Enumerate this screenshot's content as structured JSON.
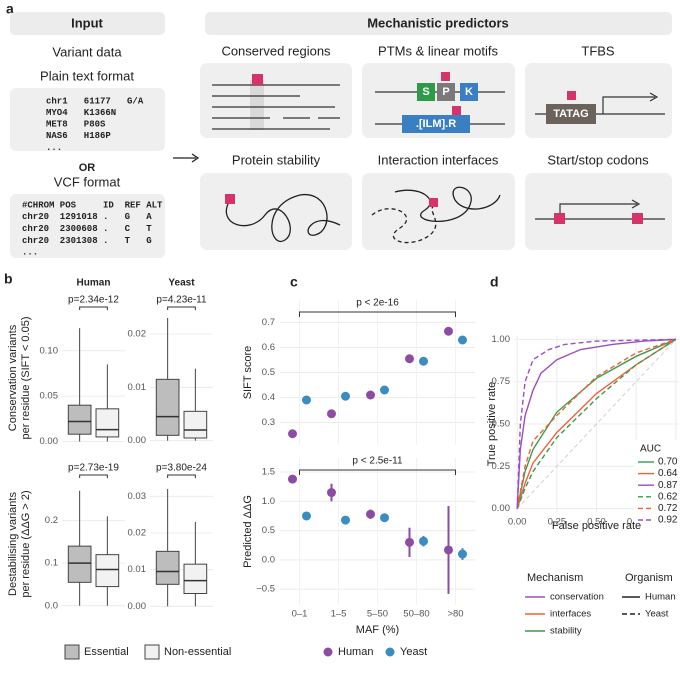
{
  "panel_a": {
    "label": "a",
    "input_header": "Input",
    "predictors_header": "Mechanistic predictors",
    "variant_data": "Variant data",
    "plain_text_title": "Plain text format",
    "plain_text_lines": [
      "chr1   61177   G/A",
      "MYO4   K1366N",
      "MET8   P80S",
      "NAS6   H186P",
      "..."
    ],
    "or": "OR",
    "vcf_title": "VCF format",
    "vcf_lines": [
      "#CHROM POS     ID  REF ALT",
      "chr20  1291018 .   G   A",
      "chr20  2300608 .   C   T",
      "chr20  2301308 .   T   G",
      "..."
    ],
    "predictors": [
      "Conserved regions",
      "PTMs & linear motifs",
      "TFBS",
      "Protein stability",
      "Interaction interfaces",
      "Start/stop codons"
    ],
    "motif_letters": [
      "S",
      "P",
      "K"
    ],
    "motif_pattern": ".[ILM].R",
    "tfbs_sequence": "TATAG"
  },
  "chart_data": [
    {
      "type": "boxplot",
      "label": "b",
      "columns": [
        "Human",
        "Yeast"
      ],
      "groups": [
        {
          "name": "Essential",
          "color": "#bdbdbd"
        },
        {
          "name": "Non-essential",
          "color": "#f2f2f2"
        }
      ],
      "rows": [
        {
          "ylabel": [
            "Conservation variants",
            "per residue (SIFT < 0.05)"
          ],
          "plots": [
            {
              "p_label": "p=2.34e-12",
              "ylim": [
                -0.005,
                0.145
              ],
              "yticks": [
                {
                  "value": 0,
                  "label": "0.00"
                },
                {
                  "value": 0.05,
                  "label": "0.05"
                },
                {
                  "value": 0.1,
                  "label": "0.10"
                }
              ],
              "boxes": [
                {
                  "min": 0,
                  "q1": 0.008,
                  "median": 0.022,
                  "q3": 0.04,
                  "max": 0.125
                },
                {
                  "min": 0,
                  "q1": 0.005,
                  "median": 0.013,
                  "q3": 0.036,
                  "max": 0.085
                }
              ]
            },
            {
              "p_label": "p=4.23e-11",
              "ylim": [
                -0.001,
                0.0245
              ],
              "yticks": [
                {
                  "value": 0,
                  "label": "0.00"
                },
                {
                  "value": 0.01,
                  "label": "0.01"
                },
                {
                  "value": 0.02,
                  "label": "0.02"
                }
              ],
              "boxes": [
                {
                  "min": 0,
                  "q1": 0.001,
                  "median": 0.0045,
                  "q3": 0.0115,
                  "max": 0.023
                },
                {
                  "min": 0,
                  "q1": 0.0005,
                  "median": 0.002,
                  "q3": 0.0055,
                  "max": 0.0135
                }
              ]
            }
          ]
        },
        {
          "ylabel": [
            "Destabilising variants",
            "per residue (ΔΔG > 2)"
          ],
          "plots": [
            {
              "p_label": "p=2.73e-19",
              "ylim": [
                -0.01,
                0.3
              ],
              "yticks": [
                {
                  "value": 0,
                  "label": "0.0"
                },
                {
                  "value": 0.1,
                  "label": "0.1"
                },
                {
                  "value": 0.2,
                  "label": "0.2"
                }
              ],
              "boxes": [
                {
                  "min": 0,
                  "q1": 0.055,
                  "median": 0.1,
                  "q3": 0.14,
                  "max": 0.27
                },
                {
                  "min": 0,
                  "q1": 0.045,
                  "median": 0.085,
                  "q3": 0.12,
                  "max": 0.21
                }
              ]
            },
            {
              "p_label": "p=3.80e-24",
              "ylim": [
                -0.001,
                0.035
              ],
              "yticks": [
                {
                  "value": 0,
                  "label": "0.00"
                },
                {
                  "value": 0.01,
                  "label": "0.01"
                },
                {
                  "value": 0.02,
                  "label": "0.02"
                },
                {
                  "value": 0.03,
                  "label": "0.03"
                }
              ],
              "boxes": [
                {
                  "min": 0,
                  "q1": 0.006,
                  "median": 0.0095,
                  "q3": 0.015,
                  "max": 0.032
                },
                {
                  "min": 0,
                  "q1": 0.0035,
                  "median": 0.007,
                  "q3": 0.0115,
                  "max": 0.023
                }
              ]
            }
          ]
        }
      ]
    },
    {
      "type": "scatter",
      "label": "c",
      "categories": [
        "0–1",
        "1–5",
        "5–50",
        "50–80",
        ">80"
      ],
      "xlabel": "MAF (%)",
      "panels": [
        {
          "ylabel": "SIFT score",
          "annotation": "p < 2e-16",
          "ylim": [
            0.21,
            0.79
          ],
          "yticks": [
            0.3,
            0.4,
            0.5,
            0.6,
            0.7
          ],
          "series": [
            {
              "name": "Human",
              "color": "#8e4ba3",
              "values": [
                0.255,
                0.335,
                0.41,
                0.555,
                0.665
              ]
            },
            {
              "name": "Yeast",
              "color": "#3a8cc1",
              "values": [
                0.39,
                0.405,
                0.43,
                0.545,
                0.63
              ]
            }
          ]
        },
        {
          "ylabel": "Predicted ΔΔG",
          "annotation": "p < 2.5e-11",
          "ylim": [
            -0.77,
            1.74
          ],
          "yticks": [
            {
              "value": -0.5,
              "label": "−0.5"
            },
            {
              "value": 0,
              "label": "0.0"
            },
            {
              "value": 0.5,
              "label": "0.5"
            },
            {
              "value": 1,
              "label": "1.0"
            },
            {
              "value": 1.5,
              "label": "1.5"
            }
          ],
          "series": [
            {
              "name": "Human",
              "color": "#8e4ba3",
              "values": [
                1.38,
                1.15,
                0.78,
                0.3,
                0.17
              ],
              "errors": [
                0.07,
                0.15,
                0.08,
                0.25,
                0.75
              ]
            },
            {
              "name": "Yeast",
              "color": "#3a8cc1",
              "values": [
                0.75,
                0.68,
                0.72,
                0.32,
                0.1
              ],
              "errors": [
                0.04,
                0.04,
                0.07,
                0.09,
                0.1
              ]
            }
          ]
        }
      ]
    },
    {
      "type": "line",
      "label": "d",
      "xlabel": "False positive rate",
      "ylabel": "True positive rate",
      "xlim": [
        -0.02,
        1.02
      ],
      "ylim": [
        -0.02,
        1.02
      ],
      "xticks": [
        {
          "value": 0,
          "label": "0.00"
        },
        {
          "value": 0.25,
          "label": "0.25"
        },
        {
          "value": 0.5,
          "label": "0.50"
        },
        {
          "value": 0.75,
          "label": "0.75"
        },
        {
          "value": 1,
          "label": "1.00"
        }
      ],
      "yticks": [
        {
          "value": 0,
          "label": "0.00"
        },
        {
          "value": 0.25,
          "label": "0.25"
        },
        {
          "value": 0.5,
          "label": "0.50"
        },
        {
          "value": 0.75,
          "label": "0.75"
        },
        {
          "value": 1,
          "label": "1.00"
        }
      ],
      "grid": true,
      "legend_title": "AUC",
      "mechanism_title": "Mechanism",
      "organism_title": "Organism",
      "mechanisms": [
        {
          "name": "conservation",
          "color": "#9a4fc0"
        },
        {
          "name": "interfaces",
          "color": "#f2603a"
        },
        {
          "name": "stability",
          "color": "#3a9a4a"
        }
      ],
      "organisms": [
        {
          "name": "Human",
          "dash": "solid"
        },
        {
          "name": "Yeast",
          "dash": "dashed"
        }
      ],
      "series": [
        {
          "mechanism": "stability",
          "organism": "Human",
          "auc": 0.7,
          "auc_label": "0.70",
          "x": [
            0,
            0.05,
            0.1,
            0.25,
            0.5,
            0.75,
            1
          ],
          "y": [
            0,
            0.22,
            0.35,
            0.57,
            0.77,
            0.9,
            1
          ]
        },
        {
          "mechanism": "interfaces",
          "organism": "Human",
          "auc": 0.64,
          "auc_label": "0.64",
          "x": [
            0,
            0.05,
            0.1,
            0.25,
            0.5,
            0.75,
            1
          ],
          "y": [
            0,
            0.15,
            0.27,
            0.45,
            0.68,
            0.85,
            1
          ]
        },
        {
          "mechanism": "conservation",
          "organism": "Human",
          "auc": 0.87,
          "auc_label": "0.87",
          "x": [
            0,
            0.02,
            0.05,
            0.1,
            0.15,
            0.25,
            0.4,
            0.6,
            0.8,
            1
          ],
          "y": [
            0,
            0.35,
            0.55,
            0.7,
            0.8,
            0.88,
            0.94,
            0.97,
            0.99,
            1
          ]
        },
        {
          "mechanism": "stability",
          "organism": "Yeast",
          "auc": 0.62,
          "auc_label": "0.62",
          "x": [
            0,
            0.05,
            0.1,
            0.25,
            0.5,
            0.75,
            1
          ],
          "y": [
            0,
            0.12,
            0.22,
            0.42,
            0.65,
            0.85,
            1
          ]
        },
        {
          "mechanism": "interfaces",
          "organism": "Yeast",
          "auc": 0.72,
          "auc_label": "0.72",
          "x": [
            0,
            0.05,
            0.1,
            0.25,
            0.5,
            0.75,
            1
          ],
          "y": [
            0,
            0.25,
            0.4,
            0.55,
            0.78,
            0.92,
            1
          ]
        },
        {
          "mechanism": "conservation",
          "organism": "Yeast",
          "auc": 0.92,
          "auc_label": "0.92",
          "x": [
            0,
            0.02,
            0.05,
            0.1,
            0.2,
            0.3,
            0.5,
            1
          ],
          "y": [
            0,
            0.5,
            0.75,
            0.88,
            0.94,
            0.97,
            0.99,
            1
          ]
        }
      ]
    }
  ]
}
